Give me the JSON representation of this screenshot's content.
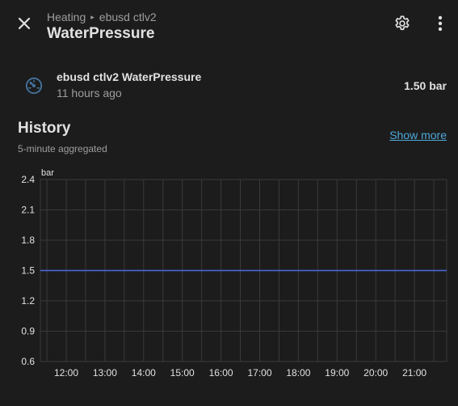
{
  "header": {
    "breadcrumb": [
      "Heating",
      "ebusd ctlv2"
    ],
    "breadcrumb_separator": "▸",
    "title": "WaterPressure",
    "icons": {
      "close": "close-icon",
      "settings": "gear-icon",
      "more": "dots-vertical-icon"
    }
  },
  "entity": {
    "name": "ebusd ctlv2 WaterPressure",
    "last_changed": "11 hours ago",
    "state": "1.50 bar",
    "icon": "gauge-icon",
    "icon_color": "#44739e"
  },
  "history": {
    "title": "History",
    "subtitle": "5-minute aggregated",
    "show_more_label": "Show more"
  },
  "chart_data": {
    "type": "line",
    "unit_label": "bar",
    "xlabel": "",
    "ylabel": "bar",
    "ylim": [
      0.6,
      2.4
    ],
    "y_ticks": [
      "2.4",
      "2.1",
      "1.8",
      "1.5",
      "1.2",
      "0.9",
      "0.6"
    ],
    "x_ticks": [
      "12:00",
      "13:00",
      "14:00",
      "15:00",
      "16:00",
      "17:00",
      "18:00",
      "19:00",
      "20:00",
      "21:00"
    ],
    "series": [
      {
        "values": [
          1.5,
          1.5,
          1.5,
          1.5,
          1.5,
          1.5,
          1.5,
          1.5,
          1.5,
          1.5,
          1.5
        ],
        "color": "#4a6be0"
      }
    ],
    "grid": true,
    "colors": {
      "grid": "#3a3a3a",
      "axis_text": "#e1e1e1"
    }
  },
  "colors": {
    "background": "#1c1c1c",
    "link": "#4fa8d8",
    "secondary_text": "#9e9e9e"
  }
}
